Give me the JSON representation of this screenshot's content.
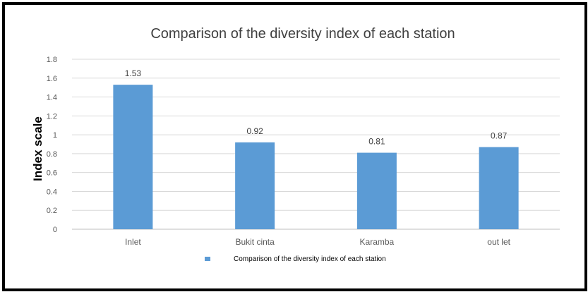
{
  "chart_data": {
    "type": "bar",
    "title": "Comparison of the diversity index of each station",
    "xlabel": "",
    "ylabel": "Index scale",
    "categories": [
      "Inlet",
      "Bukit cinta",
      "Karamba",
      "out let"
    ],
    "series": [
      {
        "name": "Comparison of the diversity index of each station",
        "values": [
          1.53,
          0.92,
          0.81,
          0.87
        ],
        "data_labels": [
          "1.53",
          "0.92",
          "0.81",
          "0.87"
        ],
        "color": "#5b9bd5"
      }
    ],
    "ylim": [
      0,
      1.8
    ],
    "yticks": [
      0,
      0.2,
      0.4,
      0.6,
      0.8,
      1,
      1.2,
      1.4,
      1.6,
      1.8
    ],
    "ytick_labels": [
      "0",
      "0.2",
      "0.4",
      "0.6",
      "0.8",
      "1",
      "1.2",
      "1.4",
      "1.6",
      "1.8"
    ],
    "grid": true,
    "grid_color": "#d9d9d9",
    "legend_position": "bottom"
  }
}
